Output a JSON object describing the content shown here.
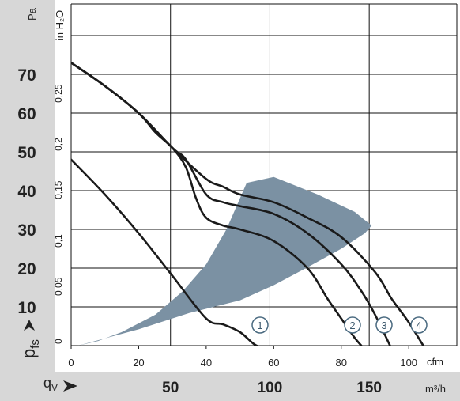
{
  "chart_data": {
    "type": "line",
    "units": {
      "pressure_pa": "Pa",
      "pressure_inh2o": "in H₂O",
      "flow_cfm": "cfm",
      "flow_m3h": "m³/h"
    },
    "axis_labels": {
      "y": "p",
      "y_sub": "fs",
      "x": "q",
      "x_sub": "V"
    },
    "y_pa": {
      "range": [
        0,
        88
      ],
      "ticks": [
        10,
        20,
        30,
        40,
        50,
        60,
        70
      ]
    },
    "y_inh2o": {
      "range": [
        0,
        0.353
      ],
      "ticks": [
        "0",
        "0,05",
        "0,1",
        "0,15",
        "0,2",
        "0,25"
      ]
    },
    "x_cfm": {
      "range": [
        0,
        115
      ],
      "ticks": [
        0,
        20,
        40,
        60,
        80,
        100
      ]
    },
    "x_m3h": {
      "ticks": [
        50,
        100,
        150
      ]
    },
    "grid": true,
    "series": [
      {
        "name": "1",
        "x_cfm": [
          0,
          10,
          20,
          30,
          40,
          45,
          50,
          54,
          57,
          59
        ],
        "y_pa": [
          48,
          39,
          29,
          18,
          7,
          5.5,
          3.5,
          0.5,
          -1,
          -3
        ]
      },
      {
        "name": "2",
        "x_cfm": [
          0,
          10,
          20,
          25,
          30,
          34,
          37,
          40,
          45,
          50,
          60,
          70,
          76,
          80,
          84,
          87
        ],
        "y_pa": [
          73,
          67,
          60,
          55,
          51,
          46,
          38,
          33,
          31,
          30,
          27,
          20,
          12,
          7,
          2,
          -1
        ]
      },
      {
        "name": "3",
        "x_cfm": [
          0,
          10,
          20,
          30,
          34,
          40,
          45,
          50,
          60,
          70,
          80,
          86,
          90,
          95
        ],
        "y_pa": [
          73,
          67,
          60,
          51,
          48,
          39,
          37,
          36,
          34,
          29,
          21,
          14,
          8,
          -1
        ]
      },
      {
        "name": "4",
        "x_cfm": [
          0,
          10,
          20,
          30,
          40,
          45,
          50,
          60,
          70,
          80,
          90,
          95,
          100,
          105
        ],
        "y_pa": [
          73,
          67,
          60,
          51,
          43,
          41,
          39,
          37,
          33,
          28,
          19,
          12,
          6,
          -1
        ]
      }
    ],
    "operating_range_polygon": {
      "x_cfm": [
        2,
        20,
        35,
        50,
        60,
        70,
        80,
        87,
        89,
        84,
        73,
        60,
        52,
        50,
        46,
        40,
        33,
        25,
        15,
        8,
        2
      ],
      "y_pa": [
        0,
        4.2,
        8.4,
        11.7,
        15.6,
        20.2,
        25,
        29,
        31,
        34.5,
        39,
        43.5,
        42,
        38,
        30,
        21,
        14,
        8,
        3.5,
        1.2,
        0
      ]
    },
    "colors": {
      "curve": "#1a1a1a",
      "operating_range": "#7b91a3",
      "grid": "#111111",
      "left_panel": "#d7d7d7",
      "marker_stroke": "#4a6a80"
    }
  }
}
